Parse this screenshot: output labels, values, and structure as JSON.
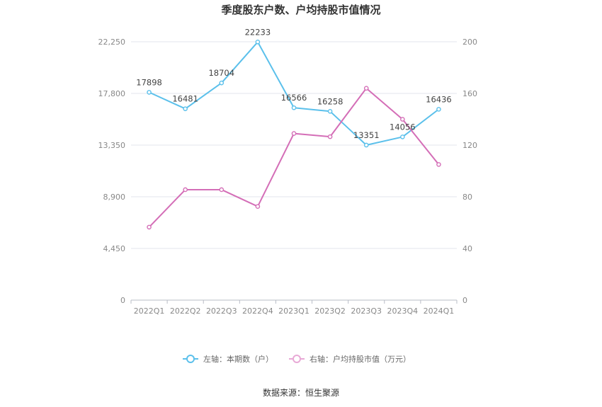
{
  "chart_data": {
    "type": "line",
    "title": "季度股东户数、户均持股市值情况",
    "categories": [
      "2022Q1",
      "2022Q2",
      "2022Q3",
      "2022Q4",
      "2023Q1",
      "2023Q2",
      "2023Q3",
      "2023Q4",
      "2024Q1"
    ],
    "left_axis": {
      "ticks": [
        "0",
        "4,450",
        "8,900",
        "13,350",
        "17,800",
        "22,250"
      ],
      "ylim": [
        0,
        22250
      ]
    },
    "right_axis": {
      "ticks": [
        "0",
        "40",
        "80",
        "120",
        "160",
        "200"
      ],
      "ylim": [
        0,
        200
      ]
    },
    "series": [
      {
        "name": "左轴：本期数（户）",
        "axis": "left",
        "color": "#5bc0eb",
        "values": [
          17898,
          16481,
          18704,
          22233,
          16566,
          16258,
          13351,
          14056,
          16436
        ],
        "labels": [
          "17898",
          "16481",
          "18704",
          "22233",
          "16566",
          "16258",
          "13351",
          "14056",
          "16436"
        ]
      },
      {
        "name": "右轴：户均持股市值（万元）",
        "axis": "right",
        "color": "#d46eb7",
        "values": [
          56.5,
          85.5,
          85.5,
          72.5,
          129,
          126.5,
          164,
          140,
          105
        ]
      }
    ],
    "grid": true,
    "legend": "bottom-center",
    "source": "数据来源：恒生聚源"
  }
}
